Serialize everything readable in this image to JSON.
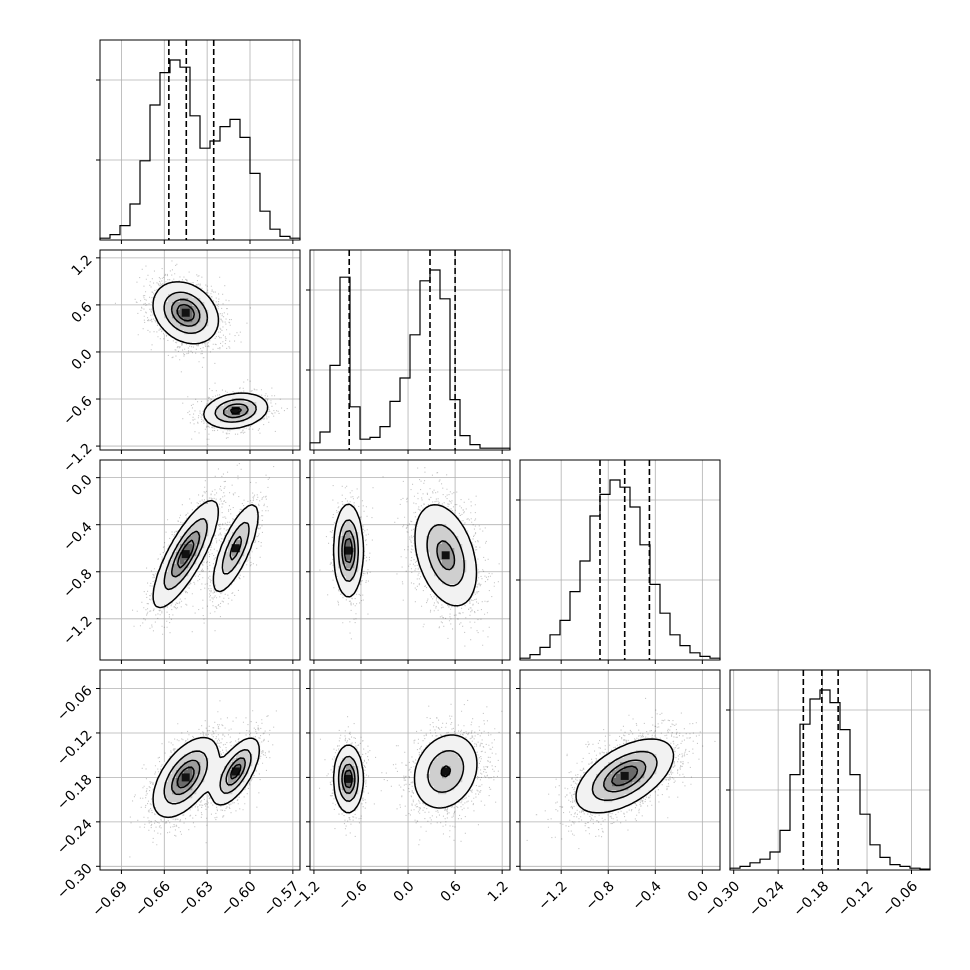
{
  "chart_data": {
    "type": "corner",
    "grid": true,
    "params": [
      {
        "range": [
          -0.705,
          -0.565
        ],
        "ticks": [
          "-0.69",
          "-0.66",
          "-0.63",
          "-0.60",
          "-0.57"
        ],
        "tick_values": [
          -0.69,
          -0.66,
          -0.63,
          -0.6,
          -0.57
        ],
        "quantiles": [
          -0.6568,
          -0.6446,
          -0.6254
        ],
        "hist": [
          0.01,
          0.03,
          0.08,
          0.2,
          0.44,
          0.75,
          0.93,
          1.0,
          0.96,
          0.69,
          0.51,
          0.55,
          0.63,
          0.67,
          0.57,
          0.37,
          0.16,
          0.06,
          0.02,
          0.01
        ],
        "modes": [
          {
            "mean": -0.644,
            "sd": 0.0085,
            "weight": 0.65
          },
          {
            "mean": -0.61,
            "sd": 0.0085,
            "weight": 0.35
          }
        ]
      },
      {
        "range": [
          -1.25,
          1.3
        ],
        "ticks": [
          "-1.2",
          "-0.6",
          "0.0",
          "0.6",
          "1.2"
        ],
        "tick_values": [
          -1.2,
          -0.6,
          0.0,
          0.6,
          1.2
        ],
        "quantiles": [
          -0.75,
          0.28,
          0.6
        ],
        "hist": [
          0.04,
          0.1,
          0.47,
          0.96,
          0.24,
          0.06,
          0.07,
          0.13,
          0.27,
          0.4,
          0.64,
          0.94,
          1.0,
          0.84,
          0.28,
          0.08,
          0.03,
          0.01,
          0.01,
          0.01
        ],
        "modes": [
          {
            "mean": 0.5,
            "sd": 0.16,
            "weight": 0.65
          },
          {
            "mean": -0.75,
            "sd": 0.09,
            "weight": 0.35
          }
        ]
      },
      {
        "range": [
          -1.55,
          0.15
        ],
        "ticks": [
          "-1.2",
          "-0.8",
          "-0.4",
          "0.0"
        ],
        "tick_values": [
          -1.2,
          -0.8,
          -0.4,
          0.0
        ],
        "quantiles": [
          -0.87,
          -0.66,
          -0.45
        ],
        "hist": [
          0.01,
          0.03,
          0.07,
          0.14,
          0.22,
          0.38,
          0.55,
          0.8,
          0.92,
          1.0,
          0.96,
          0.85,
          0.64,
          0.42,
          0.26,
          0.14,
          0.08,
          0.04,
          0.02,
          0.01
        ],
        "modes": [
          {
            "mean": -0.66,
            "sd": 0.2,
            "weight": 1.0
          }
        ]
      },
      {
        "range": [
          -0.305,
          -0.035
        ],
        "ticks": [
          "-0.30",
          "-0.24",
          "-0.18",
          "-0.12",
          "-0.06"
        ],
        "tick_values": [
          -0.3,
          -0.24,
          -0.18,
          -0.12,
          -0.06
        ],
        "quantiles": [
          -0.206,
          -0.181,
          -0.159
        ],
        "hist": [
          0.01,
          0.02,
          0.04,
          0.06,
          0.1,
          0.22,
          0.53,
          0.81,
          0.95,
          1.0,
          0.93,
          0.78,
          0.53,
          0.31,
          0.14,
          0.07,
          0.03,
          0.02,
          0.01,
          0.005
        ],
        "modes": [
          {
            "mean": -0.182,
            "sd": 0.022,
            "weight": 1.0
          }
        ]
      }
    ],
    "panels_2d": [
      {
        "x": 0,
        "y": 1,
        "components": [
          {
            "mx": -0.645,
            "my": 0.5,
            "sx": 0.011,
            "sy": 0.19,
            "rho": -0.25,
            "weight": 0.65
          },
          {
            "mx": -0.61,
            "my": -0.75,
            "sx": 0.011,
            "sy": 0.11,
            "rho": 0.2,
            "weight": 0.35
          }
        ]
      },
      {
        "x": 0,
        "y": 2,
        "components": [
          {
            "mx": -0.645,
            "my": -0.65,
            "sx": 0.011,
            "sy": 0.22,
            "rho": 0.8,
            "weight": 0.65
          },
          {
            "mx": -0.61,
            "my": -0.6,
            "sx": 0.008,
            "sy": 0.19,
            "rho": 0.75,
            "weight": 0.35
          }
        ]
      },
      {
        "x": 0,
        "y": 3,
        "components": [
          {
            "mx": -0.645,
            "my": -0.18,
            "sx": 0.011,
            "sy": 0.026,
            "rho": 0.55,
            "weight": 0.65
          },
          {
            "mx": -0.61,
            "my": -0.172,
            "sx": 0.008,
            "sy": 0.022,
            "rho": 0.65,
            "weight": 0.35
          }
        ]
      },
      {
        "x": 1,
        "y": 2,
        "components": [
          {
            "mx": 0.48,
            "my": -0.66,
            "sx": 0.2,
            "sy": 0.22,
            "rho": -0.35,
            "weight": 0.65
          },
          {
            "mx": -0.76,
            "my": -0.62,
            "sx": 0.09,
            "sy": 0.19,
            "rho": 0.0,
            "weight": 0.35
          }
        ]
      },
      {
        "x": 1,
        "y": 3,
        "components": [
          {
            "mx": 0.48,
            "my": -0.172,
            "sx": 0.21,
            "sy": 0.026,
            "rho": 0.2,
            "weight": 0.65
          },
          {
            "mx": -0.76,
            "my": -0.182,
            "sx": 0.09,
            "sy": 0.022,
            "rho": 0.0,
            "weight": 0.35
          }
        ]
      },
      {
        "x": 2,
        "y": 3,
        "components": [
          {
            "mx": -0.66,
            "my": -0.178,
            "sx": 0.2,
            "sy": 0.024,
            "rho": 0.55,
            "weight": 1.0
          }
        ]
      }
    ],
    "contour_levels": [
      0.118,
      0.393,
      0.675,
      0.865
    ]
  }
}
